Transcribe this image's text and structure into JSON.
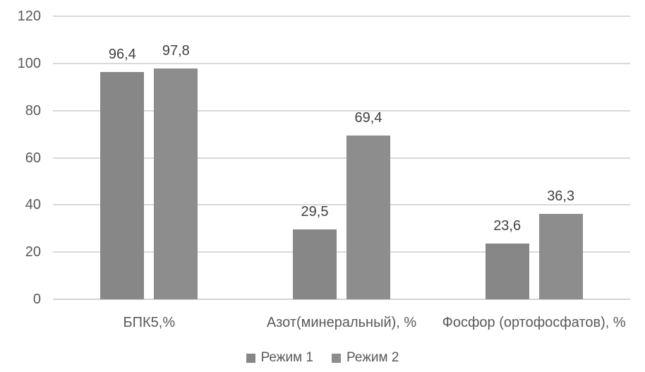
{
  "chart_data": {
    "type": "bar",
    "title": "",
    "categories": [
      "БПК5,%",
      "Азот(минеральный), %",
      "Фосфор (ортофосфатов), %"
    ],
    "series": [
      {
        "name": "Режим 1",
        "values": [
          96.4,
          29.5,
          23.6
        ],
        "data_labels": [
          "96,4",
          "29,5",
          "23,6"
        ],
        "color": "#878787"
      },
      {
        "name": "Режим 2",
        "values": [
          97.8,
          69.4,
          36.3
        ],
        "data_labels": [
          "97,8",
          "69,4",
          "36,3"
        ],
        "color": "#8d8d8d"
      }
    ],
    "xlabel": "",
    "ylabel": "",
    "y_axis": {
      "min": 0,
      "max": 120,
      "step": 20,
      "tick_labels": [
        "0",
        "20",
        "40",
        "60",
        "80",
        "100",
        "120"
      ]
    },
    "grid": true,
    "legend_position": "bottom",
    "colors": {
      "gridline": "#d9d9d9",
      "zero_line": "#d3d3d3",
      "axis_text": "#595959",
      "category_text": "#595959",
      "data_label_text": "#404040",
      "background": "#ffffff"
    }
  }
}
